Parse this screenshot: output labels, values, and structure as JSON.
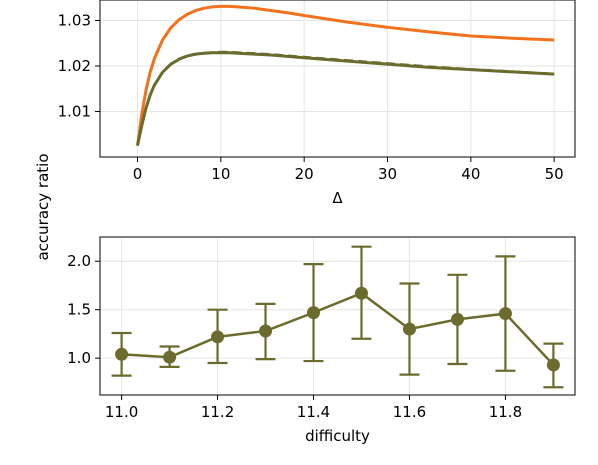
{
  "ylabel": "accuracy ratio",
  "colors": {
    "orange": "#f2711c",
    "olive": "#6b6b2e",
    "grid": "#e6e6e6"
  },
  "chart_data": [
    {
      "type": "line",
      "xlabel": "Δ",
      "ylabel": "",
      "title": "",
      "xlim": [
        -4.5,
        52.5
      ],
      "ylim": [
        1.0,
        1.0345
      ],
      "xticks": [
        0,
        10,
        20,
        30,
        40,
        50
      ],
      "yticks": [
        1.01,
        1.02,
        1.03
      ],
      "grid": true,
      "x": [
        0,
        0.5,
        1,
        1.5,
        2,
        3,
        4,
        5,
        6,
        7,
        8,
        9,
        10,
        11,
        12,
        14,
        16,
        18,
        20,
        25,
        30,
        35,
        40,
        45,
        50
      ],
      "series": [
        {
          "color": "#f2711c",
          "style": "solid",
          "values": [
            1.0025,
            1.0092,
            1.0145,
            1.0185,
            1.0215,
            1.0257,
            1.0284,
            1.0302,
            1.0314,
            1.0322,
            1.0327,
            1.033,
            1.0331,
            1.0331,
            1.033,
            1.0327,
            1.0322,
            1.0317,
            1.0311,
            1.0297,
            1.0285,
            1.0275,
            1.0266,
            1.0261,
            1.0257
          ]
        },
        {
          "color": "#6b6b2e",
          "style": "solid",
          "values": [
            1.0025,
            1.0068,
            1.0106,
            1.0135,
            1.0157,
            1.0186,
            1.0204,
            1.0215,
            1.0222,
            1.0226,
            1.0228,
            1.0229,
            1.0229,
            1.0229,
            1.0228,
            1.0226,
            1.0224,
            1.0221,
            1.0218,
            1.0211,
            1.0204,
            1.0197,
            1.0192,
            1.0187,
            1.0182
          ]
        },
        {
          "color": "#6b6b2e",
          "style": "dashed",
          "values": [
            1.0025,
            1.0069,
            1.0107,
            1.0136,
            1.0158,
            1.0187,
            1.0205,
            1.0216,
            1.0223,
            1.0227,
            1.0229,
            1.023,
            1.0231,
            1.0231,
            1.023,
            1.0228,
            1.0226,
            1.0223,
            1.022,
            1.0213,
            1.0206,
            1.0199,
            1.0193,
            1.0188,
            1.0183
          ]
        }
      ]
    },
    {
      "type": "errorbar",
      "xlabel": "difficulty",
      "ylabel": "",
      "title": "",
      "xlim": [
        10.955,
        11.945
      ],
      "ylim": [
        0.62,
        2.25
      ],
      "xticks": [
        11.0,
        11.2,
        11.4,
        11.6,
        11.8
      ],
      "xtick_labels": [
        "11.0",
        "11.2",
        "11.4",
        "11.6",
        "11.8"
      ],
      "yticks": [
        1.0,
        1.5,
        2.0
      ],
      "ytick_labels": [
        "1.0",
        "1.5",
        "2.0"
      ],
      "grid": true,
      "color": "#6b6b2e",
      "x": [
        11.0,
        11.1,
        11.2,
        11.3,
        11.4,
        11.5,
        11.6,
        11.7,
        11.8,
        11.9
      ],
      "y": [
        1.04,
        1.01,
        1.22,
        1.28,
        1.47,
        1.67,
        1.3,
        1.4,
        1.46,
        0.93
      ],
      "yerr_low": [
        0.82,
        0.91,
        0.95,
        0.99,
        0.97,
        1.2,
        0.83,
        0.94,
        0.87,
        0.7
      ],
      "yerr_high": [
        1.26,
        1.12,
        1.5,
        1.56,
        1.97,
        2.15,
        1.77,
        1.86,
        2.05,
        1.15
      ]
    }
  ]
}
